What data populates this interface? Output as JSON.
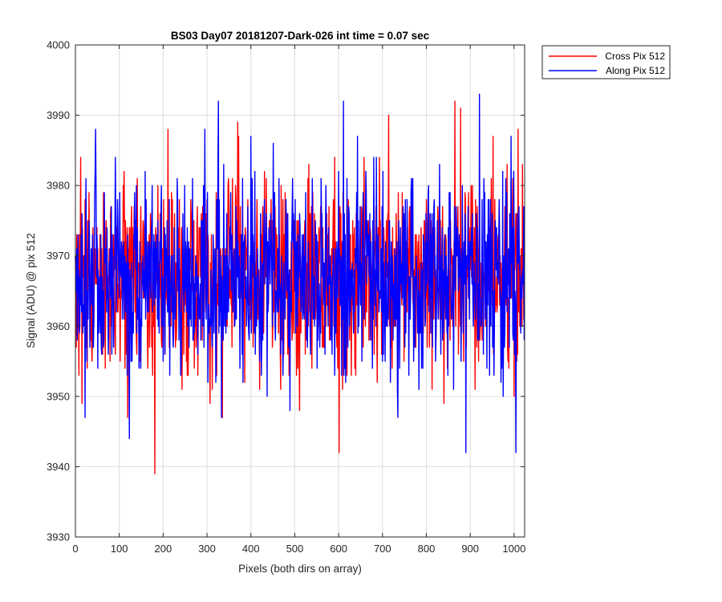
{
  "chart_data": {
    "type": "line",
    "title": "BS03 Day07 20181207-Dark-026 int time = 0.07 sec",
    "xlabel": "Pixels (both dirs on array)",
    "ylabel": "Signal (ADU) @ pix 512",
    "xlim": [
      0,
      1024
    ],
    "ylim": [
      3930,
      4000
    ],
    "xticks": [
      0,
      100,
      200,
      300,
      400,
      500,
      600,
      700,
      800,
      900,
      1000
    ],
    "yticks": [
      3930,
      3940,
      3950,
      3960,
      3970,
      3980,
      3990,
      4000
    ],
    "grid": true,
    "legend_position": "outside-top-right",
    "series_mean": 3967,
    "series": [
      {
        "name": "Cross Pix 512",
        "color": "#ff0000",
        "x_range": [
          0,
          1023
        ],
        "noise": {
          "mean": 3967,
          "stdev": 7
        },
        "extremes": [
          {
            "x": 181,
            "y": 3939
          },
          {
            "x": 601,
            "y": 3942
          },
          {
            "x": 865,
            "y": 3992
          },
          {
            "x": 878,
            "y": 3991
          },
          {
            "x": 370,
            "y": 3989
          },
          {
            "x": 714,
            "y": 3990
          }
        ]
      },
      {
        "name": "Along Pix 512",
        "color": "#0000ff",
        "x_range": [
          0,
          1023
        ],
        "noise": {
          "mean": 3967,
          "stdev": 7
        },
        "extremes": [
          {
            "x": 326,
            "y": 3992
          },
          {
            "x": 611,
            "y": 3992
          },
          {
            "x": 921,
            "y": 3993
          },
          {
            "x": 890,
            "y": 3942
          },
          {
            "x": 1004,
            "y": 3942
          },
          {
            "x": 22,
            "y": 3947
          },
          {
            "x": 123,
            "y": 3944
          }
        ]
      }
    ]
  }
}
